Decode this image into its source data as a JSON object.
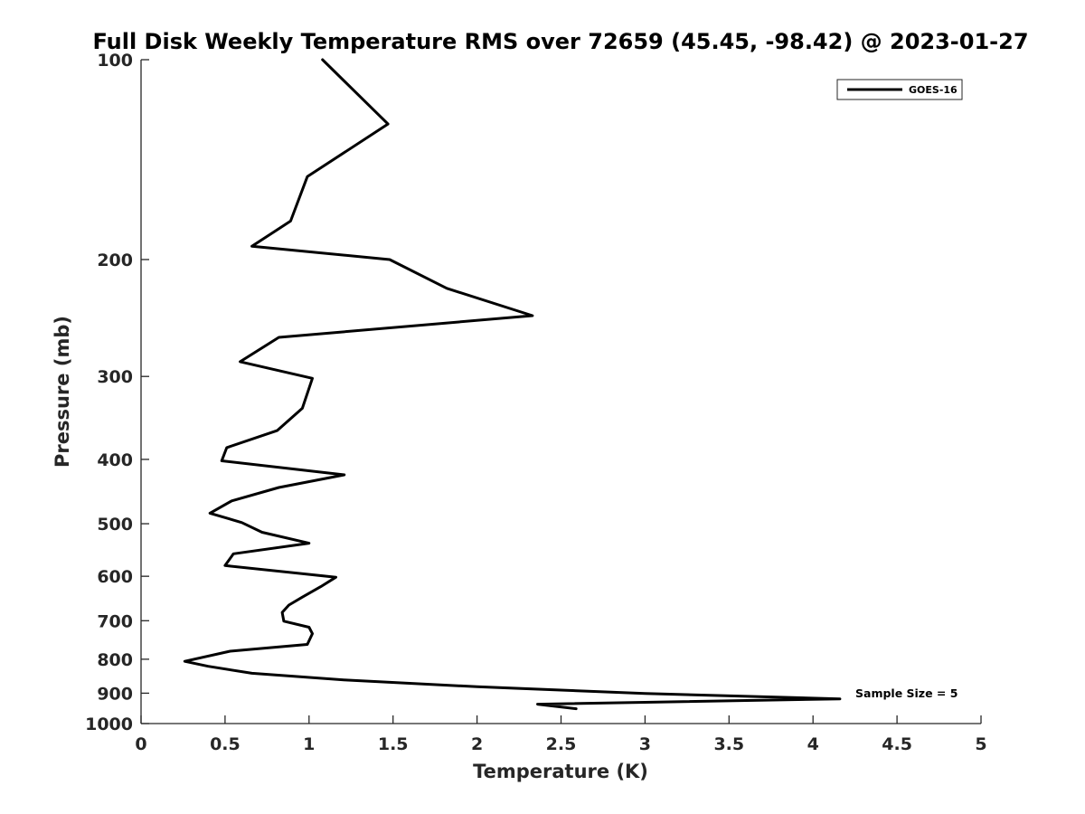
{
  "chart_data": {
    "type": "line",
    "title": "Full Disk Weekly Temperature RMS over 72659 (45.45, -98.42) @ 2023-01-27",
    "xlabel": "Temperature (K)",
    "ylabel": "Pressure (mb)",
    "xlim": [
      0,
      5
    ],
    "ylim": [
      100,
      1000
    ],
    "y_scale": "log",
    "y_reversed": true,
    "grid": false,
    "x_ticks": [
      "0",
      "0.5",
      "1",
      "1.5",
      "2",
      "2.5",
      "3",
      "3.5",
      "4",
      "4.5",
      "5"
    ],
    "y_ticks": [
      "100",
      "200",
      "300",
      "400",
      "500",
      "600",
      "700",
      "800",
      "900",
      "1000"
    ],
    "legend_position": "top-right",
    "annotation": "Sample Size = 5",
    "series": [
      {
        "name": "GOES-16",
        "color": "#000000",
        "points": [
          [
            1.08,
            100
          ],
          [
            1.47,
            125
          ],
          [
            0.99,
            150
          ],
          [
            0.89,
            175
          ],
          [
            0.66,
            191
          ],
          [
            1.48,
            200
          ],
          [
            1.82,
            221
          ],
          [
            2.33,
            243
          ],
          [
            0.82,
            262
          ],
          [
            0.59,
            285
          ],
          [
            1.02,
            302
          ],
          [
            0.96,
            335
          ],
          [
            0.81,
            362
          ],
          [
            0.51,
            384
          ],
          [
            0.48,
            402
          ],
          [
            1.21,
            422
          ],
          [
            0.82,
            441
          ],
          [
            0.54,
            462
          ],
          [
            0.41,
            482
          ],
          [
            0.6,
            498
          ],
          [
            0.72,
            515
          ],
          [
            1.0,
            535
          ],
          [
            0.55,
            555
          ],
          [
            0.5,
            578
          ],
          [
            1.16,
            602
          ],
          [
            1.07,
            622
          ],
          [
            0.96,
            645
          ],
          [
            0.88,
            663
          ],
          [
            0.84,
            680
          ],
          [
            0.85,
            701
          ],
          [
            1.0,
            716
          ],
          [
            1.02,
            732
          ],
          [
            0.99,
            760
          ],
          [
            0.53,
            778
          ],
          [
            0.26,
            806
          ],
          [
            0.4,
            820
          ],
          [
            0.66,
            840
          ],
          [
            1.22,
            860
          ],
          [
            2.0,
            880
          ],
          [
            3.0,
            901
          ],
          [
            4.16,
            918
          ],
          [
            2.36,
            935
          ],
          [
            2.59,
            950
          ]
        ]
      }
    ]
  }
}
